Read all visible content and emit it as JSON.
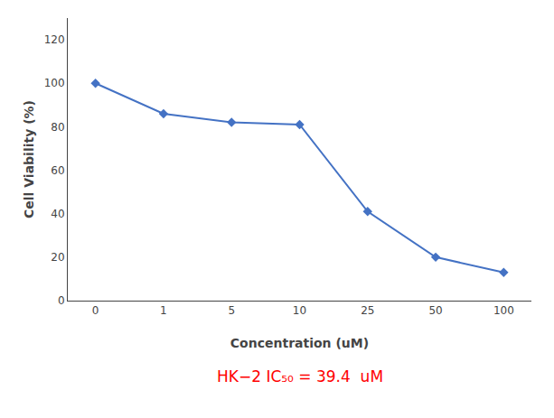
{
  "chart_data": {
    "type": "line",
    "categories": [
      "0",
      "1",
      "5",
      "10",
      "25",
      "50",
      "100"
    ],
    "values": [
      100,
      86,
      82,
      81,
      41,
      20,
      13
    ],
    "color": "#4472C4",
    "marker": "diamond",
    "xlabel": "Concentration (uM)",
    "ylabel": "Cell Viability (%)",
    "ylim": [
      0,
      130
    ],
    "yticks": [
      0,
      20,
      40,
      60,
      80,
      100,
      120
    ],
    "grid": false,
    "annotations": [
      {
        "text": "HK−2 IC₅₀ = 39.4  uM",
        "color": "#FF0000"
      }
    ]
  }
}
